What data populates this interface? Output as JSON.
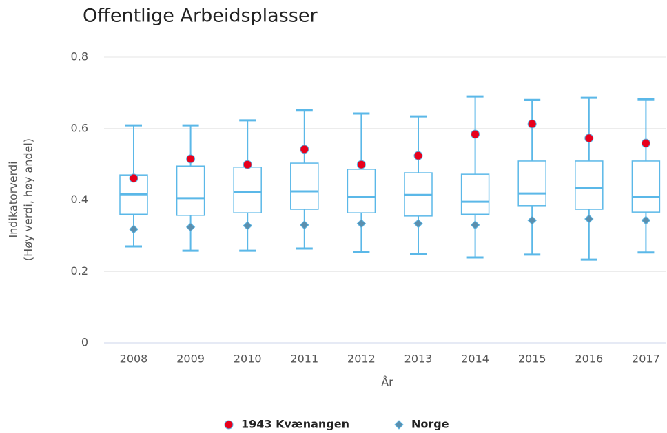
{
  "chart_data": {
    "type": "boxplot",
    "title": "Offentlige Arbeidsplasser",
    "ylabel": [
      "Indikatorverdi",
      "(Høy verdi, høy andel)"
    ],
    "xlabel": "År",
    "categories": [
      "2008",
      "2009",
      "2010",
      "2011",
      "2012",
      "2013",
      "2014",
      "2015",
      "2016",
      "2017"
    ],
    "box": {
      "color": "#5bb8e8",
      "low": [
        0.27,
        0.258,
        0.258,
        0.264,
        0.254,
        0.249,
        0.239,
        0.247,
        0.233,
        0.253
      ],
      "q1": [
        0.36,
        0.357,
        0.364,
        0.374,
        0.364,
        0.355,
        0.36,
        0.384,
        0.374,
        0.366
      ],
      "median": [
        0.416,
        0.405,
        0.422,
        0.424,
        0.409,
        0.414,
        0.395,
        0.418,
        0.434,
        0.409
      ],
      "q3": [
        0.47,
        0.495,
        0.492,
        0.503,
        0.486,
        0.476,
        0.472,
        0.509,
        0.509,
        0.509
      ],
      "high": [
        0.609,
        0.609,
        0.623,
        0.652,
        0.642,
        0.634,
        0.69,
        0.68,
        0.686,
        0.682
      ]
    },
    "series": [
      {
        "name": "1943 Kvænangen",
        "color": "#e8001c",
        "marker": "circle",
        "values": [
          0.461,
          0.515,
          0.499,
          0.542,
          0.499,
          0.524,
          0.584,
          0.613,
          0.573,
          0.559
        ]
      },
      {
        "name": "Norge",
        "color": "#5b8fae",
        "marker": "diamond",
        "values": [
          0.318,
          0.324,
          0.328,
          0.33,
          0.334,
          0.334,
          0.33,
          0.343,
          0.347,
          0.343
        ]
      }
    ],
    "ylim": [
      0,
      0.8
    ],
    "yticks": [
      0,
      0.2,
      0.4,
      0.6,
      0.8
    ],
    "grid": true,
    "legend": "bottom"
  }
}
